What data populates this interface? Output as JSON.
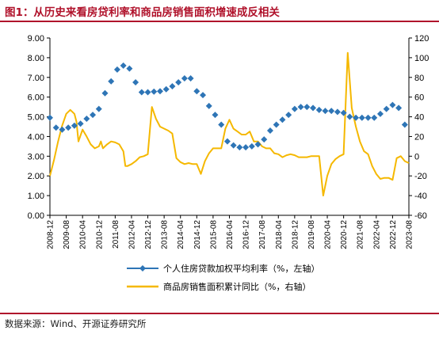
{
  "title": "图1：从历史来看房贷利率和商品房销售面积增速成反相关",
  "source": "数据来源：Wind、开源证券研究所",
  "colors": {
    "rate": "#2e75b6",
    "sales": "#f5b800",
    "title": "#b0122b"
  },
  "chart_data": {
    "type": "line",
    "title": "图1：从历史来看房贷利率和商品房销售面积增速成反相关",
    "y_left": {
      "min": 0,
      "max": 9,
      "step": 1,
      "decimals": 2
    },
    "y_right": {
      "min": -60,
      "max": 120,
      "step": 20,
      "decimals": 0
    },
    "x_tick_labels": [
      "2008-12",
      "2009-08",
      "2010-04",
      "2010-12",
      "2011-08",
      "2012-04",
      "2012-12",
      "2013-08",
      "2014-04",
      "2014-12",
      "2015-08",
      "2016-04",
      "2016-12",
      "2017-08",
      "2018-04",
      "2018-12",
      "2019-08",
      "2020-04",
      "2020-12",
      "2021-08",
      "2022-04",
      "2022-12",
      "2023-08"
    ],
    "x_range": [
      "2008-12",
      "2023-08"
    ],
    "grid": false,
    "legend_position": "bottom",
    "series": [
      {
        "name": "个人住房贷款加权平均利率（%，左轴）",
        "axis": "left",
        "style": "diamond-markers",
        "x": [
          "2008-12",
          "2009-03",
          "2009-06",
          "2009-09",
          "2009-12",
          "2010-03",
          "2010-06",
          "2010-09",
          "2010-12",
          "2011-03",
          "2011-06",
          "2011-09",
          "2011-12",
          "2012-03",
          "2012-06",
          "2012-09",
          "2012-12",
          "2013-03",
          "2013-06",
          "2013-09",
          "2013-12",
          "2014-03",
          "2014-06",
          "2014-09",
          "2014-12",
          "2015-03",
          "2015-06",
          "2015-09",
          "2015-12",
          "2016-03",
          "2016-06",
          "2016-09",
          "2016-12",
          "2017-03",
          "2017-06",
          "2017-09",
          "2017-12",
          "2018-03",
          "2018-06",
          "2018-09",
          "2018-12",
          "2019-03",
          "2019-06",
          "2019-09",
          "2019-12",
          "2020-03",
          "2020-06",
          "2020-09",
          "2020-12",
          "2021-03",
          "2021-06",
          "2021-09",
          "2021-12",
          "2022-03",
          "2022-06",
          "2022-09",
          "2022-12",
          "2023-03",
          "2023-06"
        ],
        "y": [
          4.95,
          4.45,
          4.35,
          4.45,
          4.55,
          4.65,
          4.9,
          5.1,
          5.4,
          6.2,
          6.8,
          7.4,
          7.6,
          7.45,
          6.75,
          6.25,
          6.25,
          6.28,
          6.3,
          6.4,
          6.55,
          6.75,
          6.95,
          6.95,
          6.3,
          6.1,
          5.55,
          5.1,
          4.6,
          3.75,
          3.55,
          3.45,
          3.45,
          3.5,
          3.6,
          3.85,
          4.3,
          4.6,
          4.85,
          5.1,
          5.4,
          5.5,
          5.5,
          5.45,
          5.35,
          5.3,
          5.3,
          5.25,
          5.2,
          5.0,
          4.95,
          4.95,
          4.95,
          4.95,
          5.15,
          5.4,
          5.6,
          5.45,
          4.6
        ]
      },
      {
        "name": "商品房销售面积累计同比（%，右轴）",
        "axis": "right",
        "style": "line",
        "x": [
          "2008-12",
          "2009-02",
          "2009-04",
          "2009-06",
          "2009-08",
          "2009-10",
          "2009-12",
          "2010-01",
          "2010-02",
          "2010-04",
          "2010-06",
          "2010-08",
          "2010-10",
          "2010-12",
          "2011-01",
          "2011-02",
          "2011-04",
          "2011-06",
          "2011-08",
          "2011-10",
          "2011-12",
          "2012-01",
          "2012-02",
          "2012-04",
          "2012-06",
          "2012-08",
          "2012-10",
          "2012-12",
          "2013-02",
          "2013-04",
          "2013-06",
          "2013-08",
          "2013-10",
          "2013-12",
          "2014-02",
          "2014-04",
          "2014-06",
          "2014-08",
          "2014-10",
          "2014-12",
          "2015-02",
          "2015-04",
          "2015-06",
          "2015-08",
          "2015-10",
          "2015-12",
          "2016-02",
          "2016-04",
          "2016-06",
          "2016-08",
          "2016-10",
          "2016-12",
          "2017-02",
          "2017-04",
          "2017-06",
          "2017-08",
          "2017-10",
          "2017-12",
          "2018-02",
          "2018-04",
          "2018-06",
          "2018-08",
          "2018-10",
          "2018-12",
          "2019-02",
          "2019-04",
          "2019-06",
          "2019-08",
          "2019-10",
          "2019-12",
          "2020-02",
          "2020-04",
          "2020-06",
          "2020-08",
          "2020-10",
          "2020-12",
          "2021-02",
          "2021-04",
          "2021-06",
          "2021-08",
          "2021-10",
          "2021-12",
          "2022-02",
          "2022-04",
          "2022-06",
          "2022-08",
          "2022-10",
          "2022-12",
          "2023-02",
          "2023-04",
          "2023-06",
          "2023-08"
        ],
        "y": [
          -20,
          -4,
          15,
          31,
          43,
          47,
          43,
          35,
          15,
          27,
          20,
          12,
          8,
          10,
          15,
          8,
          12,
          15,
          14,
          12,
          5,
          -10,
          -10,
          -8,
          -5,
          -1,
          0,
          2,
          50,
          38,
          30,
          28,
          26,
          23,
          -2,
          -6,
          -8,
          -7,
          -8,
          -8,
          -18,
          -5,
          3,
          8,
          8,
          8,
          28,
          37,
          28,
          25,
          22,
          22,
          25,
          15,
          15,
          10,
          8,
          8,
          3,
          2,
          -1,
          1,
          2,
          1,
          -1,
          -1,
          -1,
          0,
          0,
          0,
          -40,
          -20,
          -8,
          -3,
          0,
          2,
          105,
          49,
          30,
          15,
          5,
          2,
          -10,
          -18,
          -23,
          -22,
          -22,
          -24,
          -2,
          0,
          -5,
          -7
        ]
      }
    ]
  }
}
